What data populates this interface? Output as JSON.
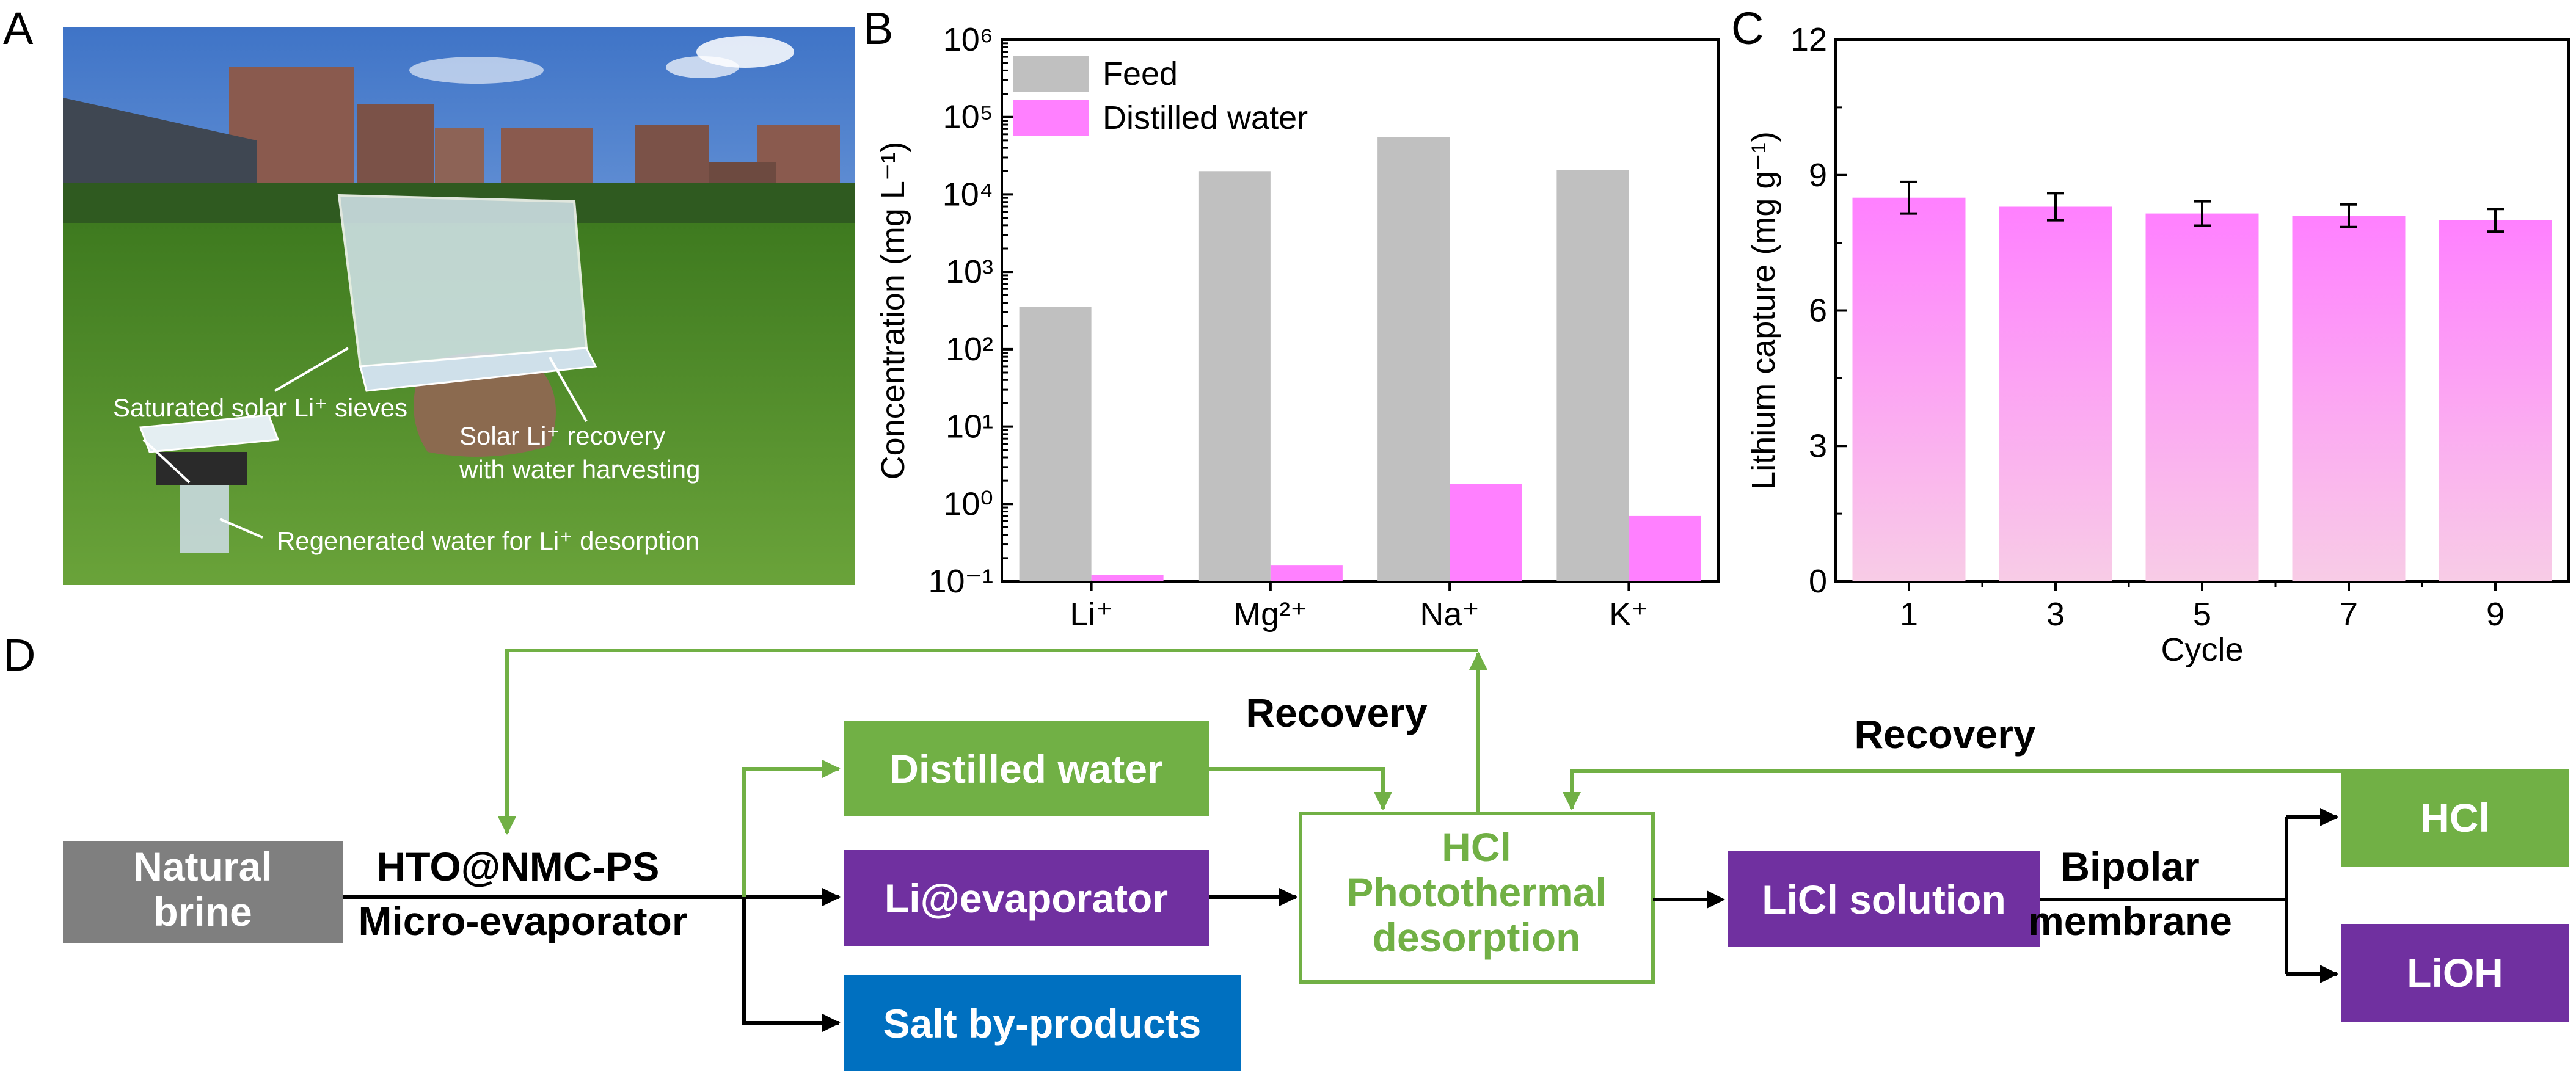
{
  "panels": {
    "a": "A",
    "b": "B",
    "c": "C",
    "d": "D"
  },
  "photo": {
    "label_sieves": "Saturated solar Li⁺ sieves",
    "label_recovery_1": "Solar Li⁺ recovery",
    "label_recovery_2": "with water harvesting",
    "label_regenerated": "Regenerated  water for Li⁺ desorption",
    "colors": {
      "sky": "#5d8fd0",
      "grass": "#4f8a2a",
      "building": "#8a5a4e"
    }
  },
  "chart_data": [
    {
      "type": "bar",
      "scale": "log",
      "categories": [
        "Li⁺",
        "Mg²⁺",
        "Na⁺",
        "K⁺"
      ],
      "series": [
        {
          "name": "Feed",
          "color": "#c0c0c0",
          "values": [
            350,
            20000,
            55000,
            20500
          ]
        },
        {
          "name": "Distilled water",
          "color": "#ff80ff",
          "values": [
            0.12,
            0.16,
            1.8,
            0.7
          ]
        }
      ],
      "ylabel": "Concentration (mg L⁻¹)",
      "ylim": [
        0.1,
        1000000
      ],
      "yticks": [
        "10⁻¹",
        "10⁰",
        "10¹",
        "10²",
        "10³",
        "10⁴",
        "10⁵",
        "10⁶"
      ],
      "legend": "top-left"
    },
    {
      "type": "bar",
      "categories": [
        "1",
        "3",
        "5",
        "7",
        "9"
      ],
      "values": [
        8.5,
        8.3,
        8.15,
        8.1,
        8.0
      ],
      "errors": [
        0.35,
        0.3,
        0.27,
        0.25,
        0.25
      ],
      "xlabel": "Cycle",
      "ylabel": "Lithium capture (mg g⁻¹)",
      "ylim": [
        0,
        12
      ],
      "yticks": [
        "0",
        "3",
        "6",
        "9",
        "12"
      ],
      "colors": {
        "top": "#ff80ff",
        "bottom": "#f8cce6"
      }
    }
  ],
  "flow": {
    "natural_brine_1": "Natural",
    "natural_brine_2": "brine",
    "evap_label_1": "HTO@NMC-PS",
    "evap_label_2": "Micro-evaporator",
    "distilled_water": "Distilled water",
    "li_evaporator": "Li@evaporator",
    "salt_byproducts": "Salt by-products",
    "desorption_1": "HCl",
    "desorption_2": "Photothermal",
    "desorption_3": "desorption",
    "recovery_1": "Recovery",
    "recovery_2": "Recovery",
    "licl": "LiCl solution",
    "bipolar_1": "Bipolar",
    "bipolar_2": "membrane",
    "hcl": "HCl",
    "lioh": "LiOH",
    "colors": {
      "gray": "#7f7f7f",
      "green": "#71b045",
      "purple": "#7030a0",
      "blue": "#0070c0"
    }
  }
}
